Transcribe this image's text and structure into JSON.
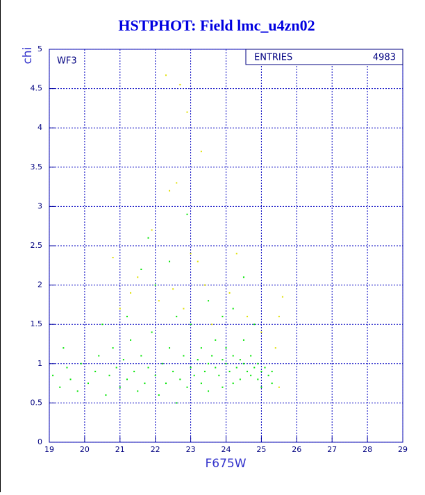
{
  "chart_data": {
    "type": "scatter",
    "title": "HSTPHOT: Field lmc_u4zn02",
    "xlabel": "F675W",
    "ylabel": "chi",
    "annotation": "WF3",
    "stats": {
      "label": "ENTRIES",
      "value": 4983
    },
    "xlim": [
      19,
      29
    ],
    "ylim": [
      0,
      5
    ],
    "xticks": [
      19,
      20,
      21,
      22,
      23,
      24,
      25,
      26,
      27,
      28,
      29
    ],
    "yticks": [
      0,
      0.5,
      1,
      1.5,
      2,
      2.5,
      3,
      3.5,
      4,
      4.5,
      5
    ],
    "grid": true,
    "series": [
      {
        "color": "#00e600",
        "x": [
          19.1,
          19.3,
          19.5,
          19.6,
          19.8,
          19.9,
          20.1,
          20.3,
          20.4,
          20.6,
          20.7,
          20.8,
          20.9,
          21.0,
          21.1,
          21.2,
          21.3,
          21.4,
          21.5,
          21.6,
          21.7,
          21.8,
          21.9,
          22.0,
          22.1,
          22.2,
          22.3,
          22.4,
          22.5,
          22.6,
          22.7,
          22.8,
          22.9,
          23.0,
          23.0,
          23.1,
          23.2,
          23.3,
          23.3,
          23.4,
          23.5,
          23.5,
          23.6,
          23.7,
          23.7,
          23.8,
          23.9,
          23.9,
          24.0,
          24.0,
          24.1,
          24.2,
          24.2,
          24.3,
          24.4,
          24.4,
          24.5,
          24.5,
          24.6,
          24.7,
          24.7,
          24.8,
          24.9,
          24.9,
          25.0,
          25.0,
          25.1,
          25.2,
          25.3,
          25.3,
          22.0,
          22.4,
          21.6,
          23.5,
          24.2,
          22.9,
          21.8,
          24.5,
          20.5,
          19.4,
          22.6,
          23.9,
          24.8,
          21.2
        ],
        "values": [
          0.85,
          0.7,
          0.95,
          0.8,
          0.65,
          1.0,
          0.75,
          0.9,
          1.1,
          0.6,
          0.85,
          1.2,
          0.95,
          0.7,
          1.05,
          0.8,
          1.3,
          0.9,
          0.65,
          1.1,
          0.75,
          0.95,
          1.4,
          0.85,
          0.6,
          1.0,
          0.75,
          1.2,
          0.9,
          0.5,
          0.8,
          1.1,
          0.7,
          0.95,
          1.5,
          0.85,
          1.05,
          0.75,
          1.2,
          0.9,
          1.0,
          0.65,
          1.1,
          0.95,
          1.3,
          0.85,
          1.05,
          0.7,
          1.0,
          1.2,
          0.9,
          1.1,
          0.75,
          0.95,
          1.05,
          0.8,
          1.0,
          1.3,
          0.9,
          0.85,
          1.1,
          0.95,
          0.8,
          1.0,
          0.9,
          0.7,
          0.95,
          0.85,
          0.75,
          0.9,
          2.0,
          2.3,
          2.2,
          1.8,
          1.7,
          2.9,
          2.6,
          2.1,
          1.5,
          1.2,
          1.6,
          1.6,
          1.5,
          1.6
        ]
      },
      {
        "color": "#e0e000",
        "x": [
          22.3,
          22.7,
          23.3,
          22.9,
          22.6,
          22.4,
          21.9,
          21.5,
          21.3,
          22.1,
          22.8,
          23.2,
          23.4,
          24.1,
          24.6,
          25.0,
          25.5,
          25.6,
          25.4,
          23.0,
          21.0,
          22.5,
          23.6,
          24.3,
          25.5,
          20.8
        ],
        "values": [
          4.67,
          4.55,
          3.7,
          4.2,
          3.3,
          3.2,
          2.7,
          2.1,
          1.9,
          1.8,
          1.7,
          2.3,
          2.0,
          1.9,
          1.6,
          1.4,
          1.6,
          1.85,
          1.2,
          2.4,
          1.7,
          1.95,
          1.5,
          2.4,
          0.7,
          2.35
        ]
      }
    ]
  }
}
